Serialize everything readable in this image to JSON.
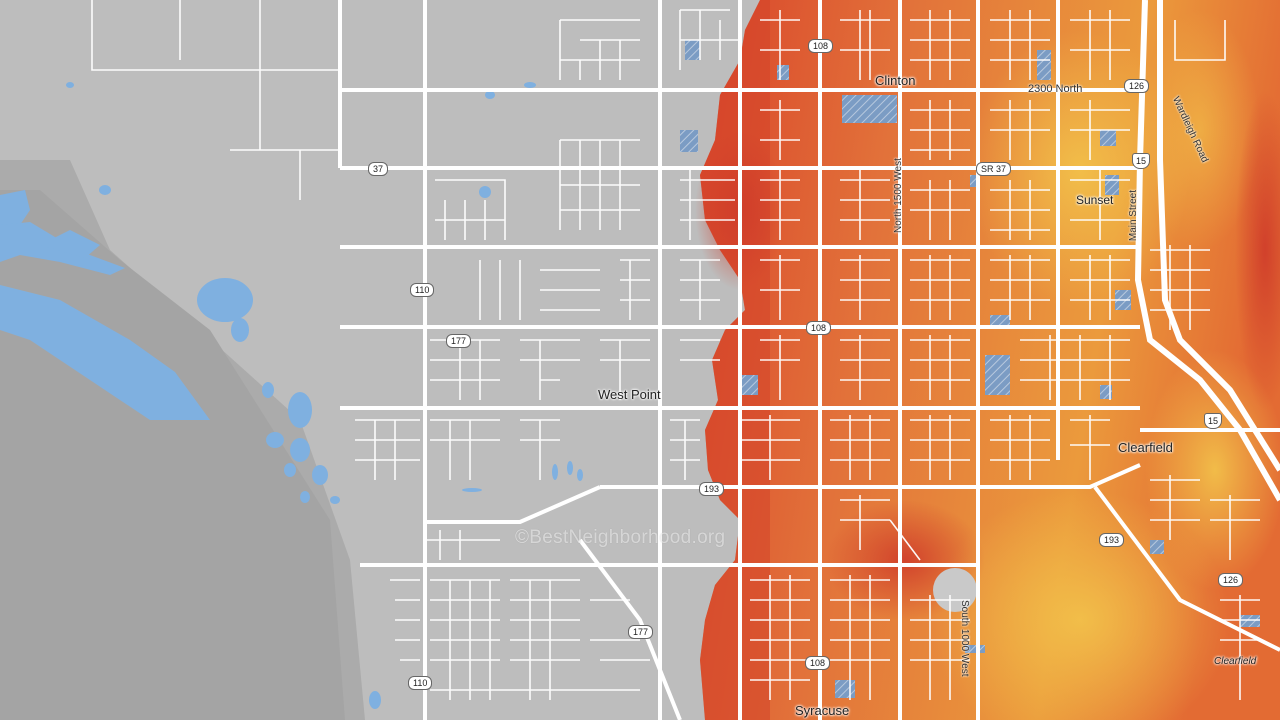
{
  "watermark": "©BestNeighborhood.org",
  "places": {
    "clinton": "Clinton",
    "sunset": "Sunset",
    "west_point": "West Point",
    "clearfield": "Clearfield",
    "syracuse": "Syracuse",
    "clearfield_small": "Clearfield"
  },
  "streets": {
    "north_2300": "2300 North",
    "north_1500_west": "North 1500 West",
    "main_street": "Main Street",
    "wardleigh_road": "Wardleigh Road",
    "south_1000_west": "South 1000 West"
  },
  "shields": {
    "r108_top": "108",
    "r126_top": "126",
    "sr37": "SR 37",
    "r37": "37",
    "i15_top": "15",
    "r110_mid": "110",
    "r177_mid": "177",
    "r108_mid": "108",
    "i15_mid": "15",
    "r193_mid": "193",
    "r193_right": "193",
    "r126_bottom": "126",
    "r177_bottom": "177",
    "r108_bottom": "108",
    "r110_bottom": "110"
  },
  "colors": {
    "base": "#bdbdbd",
    "road": "#ffffff",
    "water": "#7fb0e0",
    "heat_high": "#d9502c",
    "heat_mid": "#e8833a",
    "heat_low": "#f0b040"
  }
}
